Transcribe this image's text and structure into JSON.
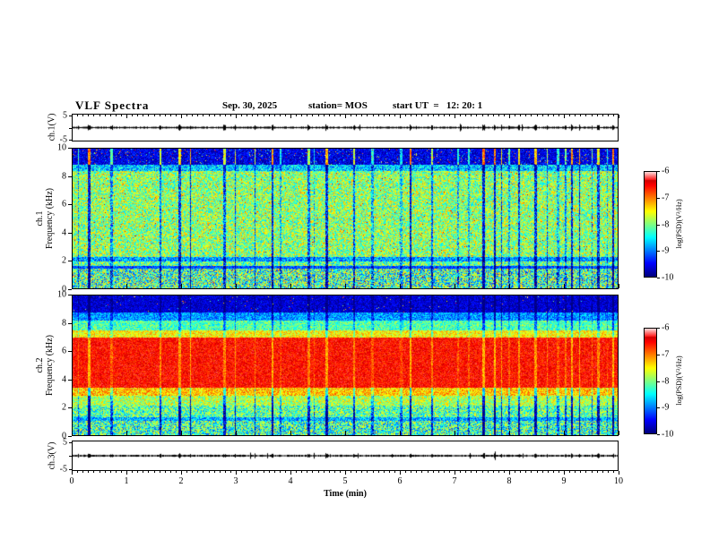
{
  "header": {
    "title": "VLF Spectra",
    "date": "Sep. 30, 2025",
    "station": "station= MOS",
    "start_ut": "start UT  =   12: 20: 1"
  },
  "axes": {
    "x": {
      "label": "Time (min)",
      "ticks": [
        0,
        1,
        2,
        3,
        4,
        5,
        6,
        7,
        8,
        9,
        10
      ],
      "lim": [
        0,
        10
      ]
    }
  },
  "colors": {
    "background": "#ffffff",
    "frame": "#000000",
    "text": "#000000",
    "colormap": "jet-like rainbow (dark blue -> cyan -> green -> yellow -> red)"
  },
  "chart_data": [
    {
      "type": "line",
      "name": "ch1-voltage-trace",
      "ylabel": "ch.1(V)",
      "ylim": [
        -5,
        5
      ],
      "yticks": [
        5,
        -5
      ],
      "xlim": [
        0,
        10
      ],
      "description": "near-flat trace at 0 V with small impulsive spikes aligned with broadband pulses"
    },
    {
      "type": "heatmap",
      "name": "ch1-spectrogram",
      "ylabel_channel": "ch.1",
      "ylabel": "Frequency (kHz)",
      "ylim": [
        0,
        10
      ],
      "yticks": [
        0,
        2,
        4,
        6,
        8,
        10
      ],
      "xlim": [
        0,
        10
      ],
      "colorbar": {
        "label": "log(PSD)(V²/Hz)",
        "ticks": [
          -6,
          -7,
          -8,
          -9,
          -10
        ],
        "max": -6,
        "min": -10
      },
      "stripes": {
        "density": 0.1,
        "min": 0.15,
        "max": 0.42
      },
      "bands": [
        {
          "range": [
            8.9,
            10.01
          ],
          "value": 0.1,
          "noise": 0.1,
          "stripe": -1.6,
          "speckle": 0.05,
          "speckle_mode": "random"
        },
        {
          "range": [
            8.45,
            8.9
          ],
          "value": 0.32,
          "noise": 0.16,
          "stripe": 0.8
        },
        {
          "range": [
            2.2,
            8.45
          ],
          "value": 0.52,
          "noise": 0.2,
          "stripe": 1.0,
          "speckle": 0.012,
          "speckle_mode": "hot"
        },
        {
          "range": [
            1.9,
            2.2
          ],
          "value": 0.28,
          "noise": 0.15,
          "stripe": 0.9
        },
        {
          "range": [
            1.6,
            1.9
          ],
          "value": 0.48,
          "noise": 0.2,
          "stripe": 1.0
        },
        {
          "range": [
            1.4,
            1.6
          ],
          "value": 0.2,
          "noise": 0.1,
          "stripe": 0.8
        },
        {
          "range": [
            0,
            1.4
          ],
          "value": 0.44,
          "noise": 0.28,
          "stripe": 1.2,
          "speckle": 0.01,
          "speckle_mode": "hot"
        }
      ]
    },
    {
      "type": "heatmap",
      "name": "ch2-spectrogram",
      "ylabel_channel": "ch.2",
      "ylabel": "Frequency (kHz)",
      "ylim": [
        0,
        10
      ],
      "yticks": [
        0,
        2,
        4,
        6,
        8,
        10
      ],
      "xlim": [
        0,
        10
      ],
      "colorbar": {
        "label": "log(PSD)(V²/Hz)",
        "ticks": [
          -6,
          -7,
          -8,
          -9,
          -10
        ],
        "max": -6,
        "min": -10
      },
      "bands": [
        {
          "range": [
            8.8,
            10.01
          ],
          "value": 0.08,
          "noise": 0.08,
          "stripe": 0.3,
          "speckle": 0.012,
          "speckle_mode": "random"
        },
        {
          "range": [
            8.2,
            8.8
          ],
          "value": 0.27,
          "noise": 0.12,
          "stripe": 0.5
        },
        {
          "range": [
            7.5,
            8.2
          ],
          "value": 0.45,
          "noise": 0.13,
          "stripe": 0.6
        },
        {
          "range": [
            7.0,
            7.5
          ],
          "value": 0.63,
          "noise": 0.12,
          "stripe": 0.5
        },
        {
          "range": [
            3.4,
            7.0
          ],
          "value": 0.87,
          "noise": 0.08,
          "stripe": 0.4
        },
        {
          "range": [
            2.8,
            3.4
          ],
          "value": 0.68,
          "noise": 0.13,
          "stripe": 0.8
        },
        {
          "range": [
            2.1,
            2.8
          ],
          "value": 0.55,
          "noise": 0.16,
          "stripe": 1.1
        },
        {
          "range": [
            1.25,
            2.1
          ],
          "value": 0.46,
          "noise": 0.2,
          "stripe": 1.3
        },
        {
          "range": [
            1.0,
            1.25
          ],
          "value": 0.3,
          "noise": 0.15,
          "stripe": 1.0
        },
        {
          "range": [
            0,
            1.0
          ],
          "value": 0.43,
          "noise": 0.24,
          "stripe": 1.2
        }
      ]
    },
    {
      "type": "line",
      "name": "ch3-voltage-trace",
      "ylabel": "ch.3(V)",
      "ylim": [
        -5,
        5
      ],
      "yticks": [
        5,
        -5
      ],
      "xlim": [
        0,
        10
      ],
      "description": "near-flat trace at 0 V with very small impulsive spikes"
    }
  ]
}
